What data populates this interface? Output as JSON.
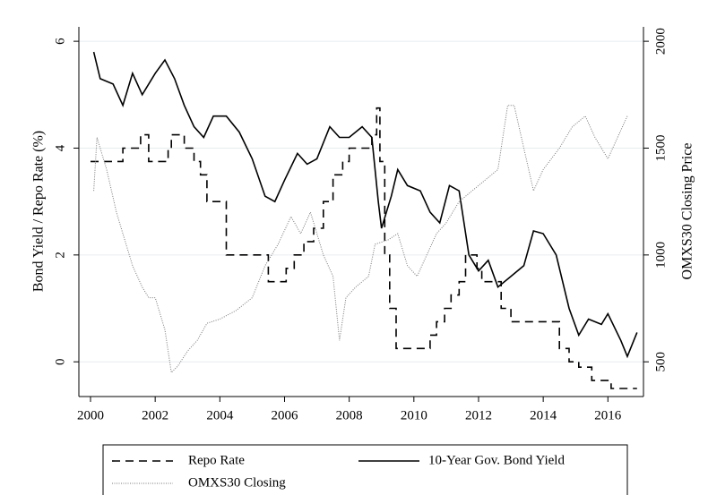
{
  "chart_data": {
    "type": "line",
    "y_label": "Bond Yield / Repo Rate (%)",
    "y2_label": "OMXS30 Closing Price",
    "xlim": [
      1999.64,
      2017.1
    ],
    "xticks": [
      2000,
      2002,
      2004,
      2006,
      2008,
      2010,
      2012,
      2014,
      2016
    ],
    "ylim": [
      -0.65,
      6.27
    ],
    "yticks": [
      0,
      2,
      4,
      6
    ],
    "y2lim": [
      337.5,
      2067.5
    ],
    "y2ticks": [
      500,
      1000,
      1500,
      2000
    ],
    "grid": true,
    "legend": "bottom",
    "series": [
      {
        "name": "Repo Rate",
        "color": "#000000",
        "style": "dashed",
        "x": [
          2000.0,
          2001.0,
          2001.0,
          2001.55,
          2001.55,
          2001.8,
          2001.8,
          2002.4,
          2002.4,
          2002.5,
          2002.5,
          2002.9,
          2002.9,
          2003.2,
          2003.2,
          2003.4,
          2003.4,
          2003.6,
          2003.6,
          2004.2,
          2004.2,
          2005.5,
          2005.5,
          2006.05,
          2006.05,
          2006.3,
          2006.3,
          2006.6,
          2006.6,
          2006.9,
          2006.9,
          2007.2,
          2007.2,
          2007.5,
          2007.5,
          2007.8,
          2007.8,
          2008.0,
          2008.0,
          2008.7,
          2008.7,
          2008.85,
          2008.85,
          2008.95,
          2008.95,
          2009.1,
          2009.1,
          2009.25,
          2009.25,
          2009.45,
          2009.45,
          2010.5,
          2010.5,
          2010.7,
          2010.7,
          2010.95,
          2010.95,
          2011.15,
          2011.15,
          2011.4,
          2011.4,
          2011.6,
          2011.6,
          2011.95,
          2011.95,
          2012.1,
          2012.1,
          2012.7,
          2012.7,
          2013.0,
          2013.0,
          2014.5,
          2014.5,
          2014.8,
          2014.8,
          2015.1,
          2015.1,
          2015.5,
          2015.5,
          2016.1,
          2016.1,
          2016.9
        ],
        "values": [
          3.75,
          3.75,
          4.0,
          4.0,
          4.25,
          4.25,
          3.75,
          3.75,
          4.0,
          4.0,
          4.25,
          4.25,
          4.0,
          4.0,
          3.75,
          3.75,
          3.5,
          3.5,
          3.0,
          3.0,
          2.0,
          2.0,
          1.5,
          1.5,
          1.75,
          1.75,
          2.0,
          2.0,
          2.25,
          2.25,
          2.5,
          2.5,
          3.0,
          3.0,
          3.5,
          3.5,
          3.75,
          3.75,
          4.0,
          4.0,
          4.25,
          4.25,
          4.75,
          4.75,
          3.75,
          3.75,
          2.0,
          2.0,
          1.0,
          1.0,
          0.25,
          0.25,
          0.5,
          0.5,
          0.75,
          0.75,
          1.0,
          1.0,
          1.25,
          1.25,
          1.5,
          1.5,
          2.0,
          2.0,
          1.75,
          1.75,
          1.5,
          1.5,
          1.0,
          1.0,
          0.75,
          0.75,
          0.25,
          0.25,
          0.0,
          0.0,
          -0.1,
          -0.1,
          -0.35,
          -0.35,
          -0.5,
          -0.5
        ]
      },
      {
        "name": "10-Year Gov. Bond Yield",
        "color": "#000000",
        "style": "solid",
        "x": [
          2000.1,
          2000.3,
          2000.7,
          2001.0,
          2001.3,
          2001.6,
          2002.0,
          2002.3,
          2002.6,
          2002.9,
          2003.2,
          2003.5,
          2003.8,
          2004.2,
          2004.6,
          2005.0,
          2005.4,
          2005.7,
          2006.0,
          2006.4,
          2006.7,
          2007.0,
          2007.4,
          2007.7,
          2008.0,
          2008.4,
          2008.7,
          2008.9,
          2009.0,
          2009.3,
          2009.5,
          2009.8,
          2010.2,
          2010.5,
          2010.8,
          2011.1,
          2011.4,
          2011.7,
          2012.0,
          2012.3,
          2012.6,
          2013.0,
          2013.4,
          2013.7,
          2014.0,
          2014.4,
          2014.8,
          2015.1,
          2015.4,
          2015.8,
          2016.0,
          2016.4,
          2016.6,
          2016.9
        ],
        "values": [
          5.8,
          5.3,
          5.2,
          4.8,
          5.4,
          5.0,
          5.4,
          5.65,
          5.3,
          4.8,
          4.4,
          4.2,
          4.6,
          4.6,
          4.3,
          3.8,
          3.1,
          3.0,
          3.4,
          3.9,
          3.7,
          3.8,
          4.4,
          4.2,
          4.2,
          4.4,
          4.2,
          3.0,
          2.5,
          3.1,
          3.6,
          3.3,
          3.2,
          2.8,
          2.6,
          3.3,
          3.2,
          2.0,
          1.7,
          1.9,
          1.4,
          1.6,
          1.8,
          2.45,
          2.4,
          2.0,
          1.0,
          0.5,
          0.8,
          0.7,
          0.9,
          0.4,
          0.1,
          0.55
        ]
      },
      {
        "name": "OMXS30 Closing",
        "color": "#777777",
        "style": "dotted",
        "axis": "y2",
        "x": [
          2000.1,
          2000.2,
          2000.5,
          2000.8,
          2001.0,
          2001.3,
          2001.6,
          2001.8,
          2002.0,
          2002.3,
          2002.5,
          2002.7,
          2003.0,
          2003.3,
          2003.6,
          2004.0,
          2004.5,
          2005.0,
          2005.4,
          2005.8,
          2006.2,
          2006.5,
          2006.8,
          2007.2,
          2007.5,
          2007.7,
          2007.9,
          2008.2,
          2008.6,
          2008.8,
          2009.2,
          2009.5,
          2009.8,
          2010.1,
          2010.4,
          2010.7,
          2011.0,
          2011.4,
          2011.8,
          2012.2,
          2012.6,
          2012.9,
          2013.1,
          2013.4,
          2013.7,
          2014.0,
          2014.5,
          2014.9,
          2015.3,
          2015.6,
          2016.0,
          2016.3,
          2016.6
        ],
        "values": [
          1300,
          1550,
          1400,
          1200,
          1100,
          950,
          850,
          800,
          800,
          650,
          450,
          480,
          550,
          600,
          680,
          700,
          740,
          800,
          950,
          1050,
          1180,
          1100,
          1200,
          1000,
          900,
          600,
          800,
          850,
          900,
          1050,
          1070,
          1100,
          950,
          900,
          1000,
          1100,
          1150,
          1250,
          1300,
          1350,
          1400,
          1700,
          1700,
          1500,
          1300,
          1400,
          1500,
          1600,
          1650,
          1550,
          1450,
          1550,
          1650
        ]
      }
    ]
  }
}
